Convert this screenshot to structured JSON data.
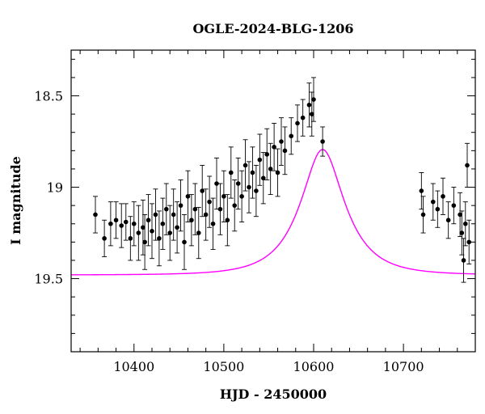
{
  "chart_data": {
    "type": "scatter",
    "title": "OGLE-2024-BLG-1206",
    "xlabel": "HJD - 2450000",
    "ylabel": "I magnitude",
    "xlim": [
      10330,
      10780
    ],
    "ylim": [
      19.9,
      18.25
    ],
    "y_inverted": true,
    "grid": false,
    "x_ticks": [
      10400,
      10500,
      10600,
      10700
    ],
    "x_tick_labels": [
      "10400",
      "10500",
      "10600",
      "10700"
    ],
    "y_ticks": [
      18.5,
      19,
      19.5
    ],
    "y_tick_labels": [
      "18.5",
      "19",
      "19.5"
    ],
    "colors": {
      "data": "#000000",
      "model": "#ff00ff",
      "axes": "#000000"
    },
    "series": [
      {
        "kind": "points-with-errorbars",
        "x": [
          10357,
          10367,
          10374,
          10380,
          10386,
          10391,
          10396,
          10400,
          10405,
          10410,
          10412,
          10416,
          10420,
          10424,
          10428,
          10432,
          10436,
          10440,
          10444,
          10448,
          10452,
          10456,
          10460,
          10464,
          10468,
          10472,
          10476,
          10480,
          10484,
          10488,
          10492,
          10496,
          10500,
          10504,
          10508,
          10512,
          10516,
          10520,
          10524,
          10528,
          10532,
          10536,
          10540,
          10544,
          10548,
          10552,
          10556,
          10560,
          10564,
          10568,
          10575,
          10582,
          10588,
          10595,
          10598,
          10600,
          10610,
          10720,
          10722,
          10733,
          10738,
          10744,
          10750,
          10756,
          10763,
          10765,
          10767,
          10769,
          10771,
          10773
        ],
        "y": [
          19.15,
          19.28,
          19.2,
          19.18,
          19.21,
          19.19,
          19.28,
          19.2,
          19.25,
          19.22,
          19.3,
          19.18,
          19.24,
          19.15,
          19.28,
          19.2,
          19.12,
          19.25,
          19.15,
          19.22,
          19.1,
          19.3,
          19.05,
          19.18,
          19.12,
          19.25,
          19.02,
          19.15,
          19.08,
          19.2,
          18.98,
          19.12,
          19.05,
          19.18,
          18.92,
          19.1,
          18.98,
          19.05,
          18.88,
          19.0,
          18.92,
          19.02,
          18.85,
          18.95,
          18.82,
          18.9,
          18.78,
          18.92,
          18.75,
          18.8,
          18.72,
          18.65,
          18.62,
          18.55,
          18.6,
          18.52,
          18.75,
          19.02,
          19.15,
          19.08,
          19.12,
          19.05,
          19.18,
          19.1,
          19.15,
          19.25,
          19.4,
          19.2,
          18.88,
          19.3
        ],
        "yerr": [
          0.1,
          0.1,
          0.12,
          0.1,
          0.12,
          0.1,
          0.12,
          0.12,
          0.15,
          0.15,
          0.15,
          0.14,
          0.15,
          0.14,
          0.15,
          0.14,
          0.14,
          0.15,
          0.14,
          0.14,
          0.14,
          0.15,
          0.14,
          0.14,
          0.14,
          0.14,
          0.14,
          0.14,
          0.14,
          0.14,
          0.14,
          0.14,
          0.14,
          0.14,
          0.14,
          0.14,
          0.14,
          0.14,
          0.14,
          0.14,
          0.14,
          0.14,
          0.14,
          0.14,
          0.14,
          0.14,
          0.13,
          0.13,
          0.13,
          0.13,
          0.1,
          0.1,
          0.1,
          0.12,
          0.12,
          0.12,
          0.08,
          0.1,
          0.1,
          0.1,
          0.1,
          0.1,
          0.1,
          0.1,
          0.12,
          0.12,
          0.12,
          0.12,
          0.12,
          0.12
        ]
      },
      {
        "kind": "model-curve",
        "t0": 10610,
        "u0": 0.48,
        "tE": 45,
        "Is": 19.48,
        "fs": 0.7,
        "x_range": [
          10330,
          10780
        ]
      }
    ]
  }
}
